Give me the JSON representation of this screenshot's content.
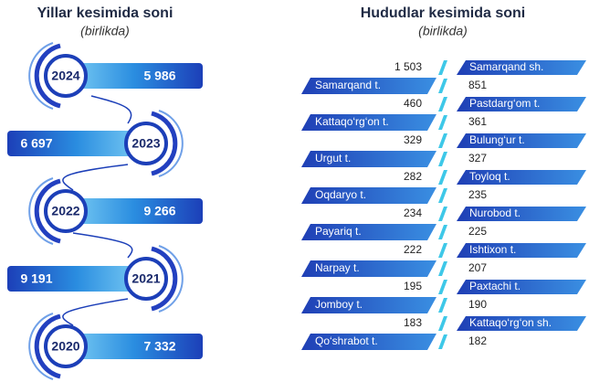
{
  "years": {
    "title": "Yillar kesimida soni",
    "subtitle": "(birlikda)",
    "items": [
      {
        "year": "2024",
        "value": "5 986"
      },
      {
        "year": "2023",
        "value": "6 697"
      },
      {
        "year": "2022",
        "value": "9 266"
      },
      {
        "year": "2021",
        "value": "9 191"
      },
      {
        "year": "2020",
        "value": "7 332"
      }
    ]
  },
  "regions": {
    "title": "Hududlar kesimida soni",
    "subtitle": "(birlikda)",
    "left": [
      {
        "value": "1 503",
        "label": "Samarqand t."
      },
      {
        "value": "460",
        "label": "Kattaqo‘rg‘on t."
      },
      {
        "value": "329",
        "label": "Urgut t."
      },
      {
        "value": "282",
        "label": "Oqdaryo t."
      },
      {
        "value": "234",
        "label": "Payariq t."
      },
      {
        "value": "222",
        "label": "Narpay t."
      },
      {
        "value": "195",
        "label": "Jomboy t."
      },
      {
        "value": "183",
        "label": "Qo‘shrabot t."
      }
    ],
    "right": [
      {
        "label": "Samarqand sh.",
        "value": "851"
      },
      {
        "label": "Pastdarg‘om t.",
        "value": "361"
      },
      {
        "label": "Bulung‘ur t.",
        "value": "327"
      },
      {
        "label": "Toyloq t.",
        "value": "235"
      },
      {
        "label": "Nurobod t.",
        "value": "225"
      },
      {
        "label": "Ishtixon t.",
        "value": "207"
      },
      {
        "label": "Paxtachi t.",
        "value": "190"
      },
      {
        "label": "Kattaqo‘rg‘on sh.",
        "value": "182"
      }
    ]
  }
}
